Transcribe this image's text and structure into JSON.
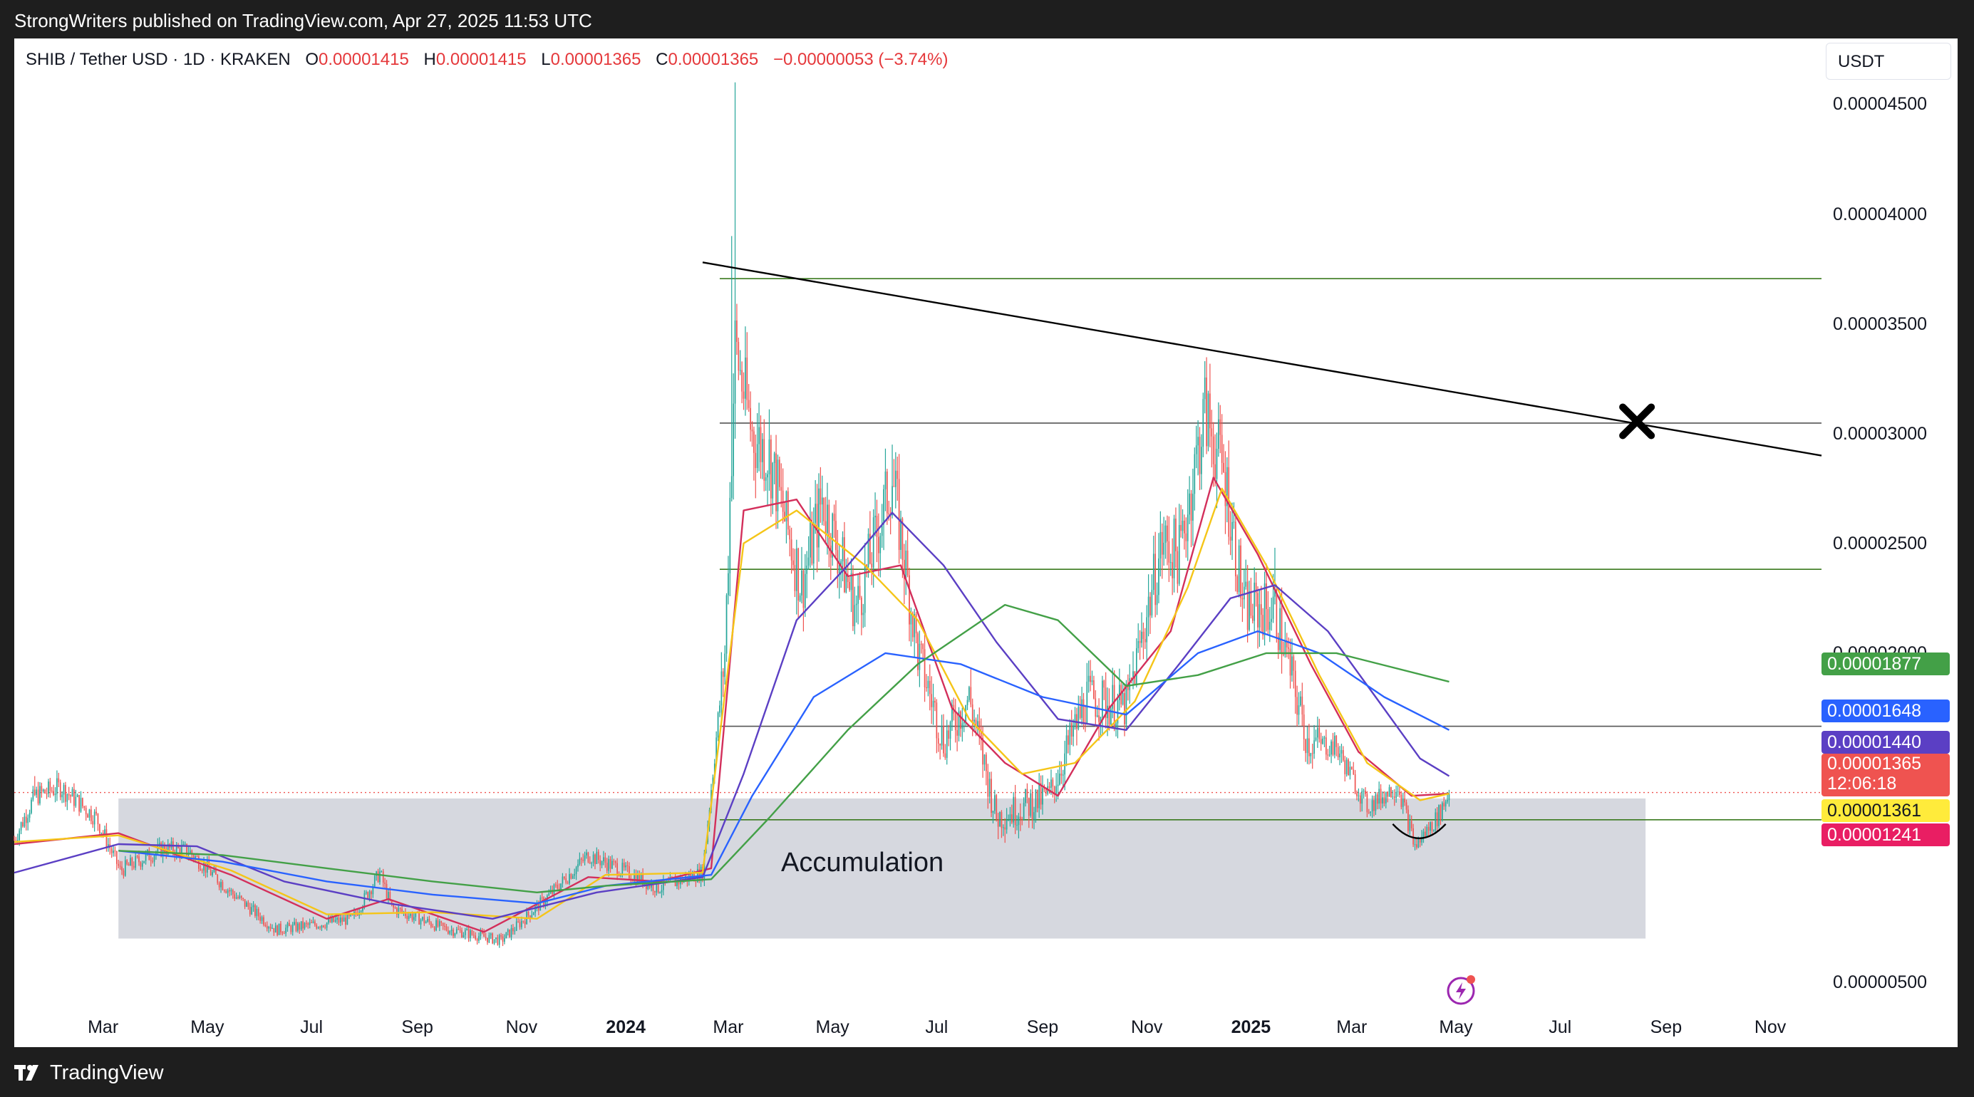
{
  "header": {
    "publisher_line": "StrongWriters published on TradingView.com, Apr 27, 2025 11:53 UTC"
  },
  "legend": {
    "symbol": "SHIB / Tether USD · 1D · KRAKEN",
    "o_label": "O",
    "o_value": "0.00001415",
    "h_label": "H",
    "h_value": "0.00001415",
    "l_label": "L",
    "l_value": "0.00001365",
    "c_label": "C",
    "c_value": "0.00001365",
    "change": "−0.00000053 (−3.74%)"
  },
  "currency": "USDT",
  "footer": {
    "brand": "TradingView"
  },
  "colors": {
    "up": "#26a69a",
    "down": "#ef5350",
    "ma_red": "#d32f5b",
    "ma_yellow": "#f5c518",
    "ma_purple": "#5b3fc4",
    "ma_blue": "#2962ff",
    "ma_green": "#43a047",
    "level_lines": "#3b7a1f",
    "zone": "#d1d4dc"
  },
  "annotations": {
    "accumulation": "Accumulation"
  },
  "chart_data": {
    "type": "candlestick",
    "title": "SHIB / Tether USD · 1D · KRAKEN",
    "y_scale": "linear",
    "ylim": [
      4e-06,
      4.8e-05
    ],
    "y_ticks": [
      "0.00004500",
      "0.00004000",
      "0.00003500",
      "0.00003000",
      "0.00002500",
      "0.00002000",
      "0.00000500"
    ],
    "x_ticks": [
      {
        "date": "2023-03-01",
        "label": "Mar"
      },
      {
        "date": "2023-05-01",
        "label": "May"
      },
      {
        "date": "2023-07-01",
        "label": "Jul"
      },
      {
        "date": "2023-09-01",
        "label": "Sep"
      },
      {
        "date": "2023-11-01",
        "label": "Nov"
      },
      {
        "date": "2024-01-01",
        "label": "2024",
        "bold": true
      },
      {
        "date": "2024-03-01",
        "label": "Mar"
      },
      {
        "date": "2024-05-01",
        "label": "May"
      },
      {
        "date": "2024-07-01",
        "label": "Jul"
      },
      {
        "date": "2024-09-01",
        "label": "Sep"
      },
      {
        "date": "2024-11-01",
        "label": "Nov"
      },
      {
        "date": "2025-01-01",
        "label": "2025",
        "bold": true
      },
      {
        "date": "2025-03-01",
        "label": "Mar"
      },
      {
        "date": "2025-05-01",
        "label": "May"
      },
      {
        "date": "2025-07-01",
        "label": "Jul"
      },
      {
        "date": "2025-09-01",
        "label": "Sep"
      },
      {
        "date": "2025-11-01",
        "label": "Nov"
      }
    ],
    "xlim": [
      "2023-01-08",
      "2025-12-01"
    ],
    "grid": false,
    "price_tags": [
      {
        "value": "0.00001877",
        "color": "#43a047"
      },
      {
        "value": "0.00001648",
        "color": "#2962ff"
      },
      {
        "value": "0.00001440",
        "color": "#5b3fc4"
      },
      {
        "value": "0.00001365",
        "sub": "12:06:18",
        "color": "#ef5350"
      },
      {
        "value": "0.00001361",
        "color": "#ffeb3b"
      },
      {
        "value": "0.00001241",
        "color": "#e91e63"
      }
    ],
    "horizontal_levels": [
      3.706e-05,
      3.048e-05,
      2.382e-05,
      1.667e-05,
      1.241e-05
    ],
    "level_span": [
      "2024-02-25",
      "2025-12-01"
    ],
    "current_price_line": 1.365e-05,
    "trendline": {
      "start": [
        "2024-02-15",
        3.78e-05
      ],
      "end": [
        "2025-12-01",
        2.9e-05
      ]
    },
    "cross_marker": {
      "date": "2025-08-15",
      "value": 3.056e-05
    },
    "accumulation_zone": {
      "start": "2023-03-10",
      "end": "2025-08-20",
      "top": 1.338e-05,
      "bottom": 7e-06
    },
    "curve_marker": {
      "start": "2025-03-25",
      "end": "2025-04-25",
      "value": 1.241e-05
    },
    "ohlc_anchors": [
      {
        "date": "2023-01-08",
        "close": 1.15e-05
      },
      {
        "date": "2023-01-20",
        "close": 1.35e-05
      },
      {
        "date": "2023-02-04",
        "close": 1.39e-05
      },
      {
        "date": "2023-02-25",
        "close": 1.25e-05
      },
      {
        "date": "2023-03-11",
        "close": 1.01e-05
      },
      {
        "date": "2023-04-05",
        "close": 1.11e-05
      },
      {
        "date": "2023-04-20",
        "close": 1.1e-05
      },
      {
        "date": "2023-05-15",
        "close": 9.1e-06
      },
      {
        "date": "2023-06-10",
        "close": 7.4e-06
      },
      {
        "date": "2023-06-30",
        "close": 7.6e-06
      },
      {
        "date": "2023-07-25",
        "close": 7.9e-06
      },
      {
        "date": "2023-08-10",
        "close": 1e-05
      },
      {
        "date": "2023-08-17",
        "close": 8.4e-06
      },
      {
        "date": "2023-09-15",
        "close": 7.5e-06
      },
      {
        "date": "2023-10-20",
        "close": 6.9e-06
      },
      {
        "date": "2023-11-15",
        "close": 8.8e-06
      },
      {
        "date": "2023-12-10",
        "close": 1.08e-05
      },
      {
        "date": "2023-12-25",
        "close": 1.03e-05
      },
      {
        "date": "2024-01-20",
        "close": 9.3e-06
      },
      {
        "date": "2024-02-15",
        "close": 1e-05
      },
      {
        "date": "2024-02-28",
        "close": 2e-05
      },
      {
        "date": "2024-03-05",
        "close": 3.4e-05
      },
      {
        "date": "2024-03-15",
        "close": 3e-05
      },
      {
        "date": "2024-03-25",
        "close": 2.9e-05
      },
      {
        "date": "2024-04-13",
        "close": 2.3e-05
      },
      {
        "date": "2024-04-25",
        "close": 2.7e-05
      },
      {
        "date": "2024-05-15",
        "close": 2.2e-05
      },
      {
        "date": "2024-06-05",
        "close": 2.8e-05
      },
      {
        "date": "2024-06-20",
        "close": 2e-05
      },
      {
        "date": "2024-07-05",
        "close": 1.6e-05
      },
      {
        "date": "2024-07-20",
        "close": 1.8e-05
      },
      {
        "date": "2024-08-05",
        "close": 1.25e-05
      },
      {
        "date": "2024-09-05",
        "close": 1.35e-05
      },
      {
        "date": "2024-09-27",
        "close": 1.8e-05
      },
      {
        "date": "2024-10-20",
        "close": 1.75e-05
      },
      {
        "date": "2024-11-10",
        "close": 2.5e-05
      },
      {
        "date": "2024-11-20",
        "close": 2.45e-05
      },
      {
        "date": "2024-12-05",
        "close": 3.1e-05
      },
      {
        "date": "2024-12-17",
        "close": 2.8e-05
      },
      {
        "date": "2024-12-28",
        "close": 2.2e-05
      },
      {
        "date": "2025-01-15",
        "close": 2.2e-05
      },
      {
        "date": "2025-02-03",
        "close": 1.6e-05
      },
      {
        "date": "2025-02-20",
        "close": 1.57e-05
      },
      {
        "date": "2025-03-10",
        "close": 1.3e-05
      },
      {
        "date": "2025-03-28",
        "close": 1.4e-05
      },
      {
        "date": "2025-04-07",
        "close": 1.12e-05
      },
      {
        "date": "2025-04-20",
        "close": 1.25e-05
      },
      {
        "date": "2025-04-27",
        "close": 1.365e-05
      }
    ],
    "moving_averages": [
      {
        "color": "#d32f5b",
        "points": [
          [
            "2023-01-08",
            1.13e-05
          ],
          [
            "2023-03-10",
            1.18e-05
          ],
          [
            "2023-05-15",
            9.9e-06
          ],
          [
            "2023-07-10",
            7.9e-06
          ],
          [
            "2023-08-15",
            8.8e-06
          ],
          [
            "2023-10-10",
            7.3e-06
          ],
          [
            "2023-12-10",
            9.8e-06
          ],
          [
            "2024-01-20",
            9.6e-06
          ],
          [
            "2024-02-20",
            1.02e-05
          ],
          [
            "2024-03-10",
            2.65e-05
          ],
          [
            "2024-04-10",
            2.7e-05
          ],
          [
            "2024-05-10",
            2.35e-05
          ],
          [
            "2024-06-10",
            2.4e-05
          ],
          [
            "2024-07-10",
            1.75e-05
          ],
          [
            "2024-08-10",
            1.5e-05
          ],
          [
            "2024-09-10",
            1.35e-05
          ],
          [
            "2024-10-10",
            1.75e-05
          ],
          [
            "2024-11-15",
            2.1e-05
          ],
          [
            "2024-12-10",
            2.8e-05
          ],
          [
            "2025-01-05",
            2.45e-05
          ],
          [
            "2025-02-05",
            1.95e-05
          ],
          [
            "2025-03-05",
            1.55e-05
          ],
          [
            "2025-04-05",
            1.35e-05
          ],
          [
            "2025-04-27",
            1.36e-05
          ]
        ]
      },
      {
        "color": "#f5c518",
        "points": [
          [
            "2023-01-08",
            1.14e-05
          ],
          [
            "2023-03-10",
            1.17e-05
          ],
          [
            "2023-05-15",
            1.01e-05
          ],
          [
            "2023-07-10",
            8.1e-06
          ],
          [
            "2023-09-10",
            8.2e-06
          ],
          [
            "2023-11-10",
            7.9e-06
          ],
          [
            "2023-12-20",
            9.9e-06
          ],
          [
            "2024-02-15",
            1e-05
          ],
          [
            "2024-03-10",
            2.5e-05
          ],
          [
            "2024-04-10",
            2.65e-05
          ],
          [
            "2024-05-20",
            2.4e-05
          ],
          [
            "2024-06-20",
            2.15e-05
          ],
          [
            "2024-07-20",
            1.7e-05
          ],
          [
            "2024-08-20",
            1.45e-05
          ],
          [
            "2024-09-20",
            1.5e-05
          ],
          [
            "2024-10-25",
            1.78e-05
          ],
          [
            "2024-11-25",
            2.3e-05
          ],
          [
            "2024-12-15",
            2.75e-05
          ],
          [
            "2025-01-10",
            2.4e-05
          ],
          [
            "2025-02-10",
            1.9e-05
          ],
          [
            "2025-03-10",
            1.5e-05
          ],
          [
            "2025-04-10",
            1.33e-05
          ],
          [
            "2025-04-27",
            1.36e-05
          ]
        ]
      },
      {
        "color": "#5b3fc4",
        "points": [
          [
            "2023-01-08",
            1e-05
          ],
          [
            "2023-03-10",
            1.13e-05
          ],
          [
            "2023-04-25",
            1.12e-05
          ],
          [
            "2023-06-15",
            9.6e-06
          ],
          [
            "2023-08-15",
            8.6e-06
          ],
          [
            "2023-10-15",
            7.9e-06
          ],
          [
            "2023-12-15",
            9.1e-06
          ],
          [
            "2024-02-15",
            9.8e-06
          ],
          [
            "2024-03-10",
            1.45e-05
          ],
          [
            "2024-04-10",
            2.15e-05
          ],
          [
            "2024-05-10",
            2.4e-05
          ],
          [
            "2024-06-05",
            2.64e-05
          ],
          [
            "2024-07-05",
            2.4e-05
          ],
          [
            "2024-08-05",
            2.05e-05
          ],
          [
            "2024-09-10",
            1.7e-05
          ],
          [
            "2024-10-20",
            1.65e-05
          ],
          [
            "2024-11-20",
            1.95e-05
          ],
          [
            "2024-12-20",
            2.25e-05
          ],
          [
            "2025-01-15",
            2.31e-05
          ],
          [
            "2025-02-15",
            2.1e-05
          ],
          [
            "2025-03-15",
            1.8e-05
          ],
          [
            "2025-04-10",
            1.52e-05
          ],
          [
            "2025-04-27",
            1.44e-05
          ]
        ]
      },
      {
        "color": "#2962ff",
        "points": [
          [
            "2023-03-10",
            1.1e-05
          ],
          [
            "2023-05-10",
            1.05e-05
          ],
          [
            "2023-07-10",
            9.6e-06
          ],
          [
            "2023-09-10",
            9e-06
          ],
          [
            "2023-11-10",
            8.6e-06
          ],
          [
            "2023-12-20",
            9.4e-06
          ],
          [
            "2024-02-20",
            9.9e-06
          ],
          [
            "2024-03-15",
            1.35e-05
          ],
          [
            "2024-04-20",
            1.8e-05
          ],
          [
            "2024-06-01",
            2e-05
          ],
          [
            "2024-07-15",
            1.95e-05
          ],
          [
            "2024-09-01",
            1.8e-05
          ],
          [
            "2024-10-20",
            1.72e-05
          ],
          [
            "2024-12-01",
            2e-05
          ],
          [
            "2025-01-05",
            2.1e-05
          ],
          [
            "2025-02-10",
            2e-05
          ],
          [
            "2025-03-20",
            1.8e-05
          ],
          [
            "2025-04-27",
            1.65e-05
          ]
        ]
      },
      {
        "color": "#43a047",
        "points": [
          [
            "2023-03-10",
            1.1e-05
          ],
          [
            "2023-05-10",
            1.08e-05
          ],
          [
            "2023-07-10",
            1.02e-05
          ],
          [
            "2023-09-10",
            9.6e-06
          ],
          [
            "2023-11-10",
            9.1e-06
          ],
          [
            "2023-12-20",
            9.4e-06
          ],
          [
            "2024-02-20",
            9.7e-06
          ],
          [
            "2024-03-25",
            1.25e-05
          ],
          [
            "2024-05-10",
            1.65e-05
          ],
          [
            "2024-06-20",
            1.95e-05
          ],
          [
            "2024-08-10",
            2.22e-05
          ],
          [
            "2024-09-10",
            2.15e-05
          ],
          [
            "2024-10-20",
            1.85e-05
          ],
          [
            "2024-12-01",
            1.9e-05
          ],
          [
            "2025-01-10",
            2e-05
          ],
          [
            "2025-02-20",
            2e-05
          ],
          [
            "2025-04-27",
            1.87e-05
          ]
        ]
      }
    ]
  }
}
